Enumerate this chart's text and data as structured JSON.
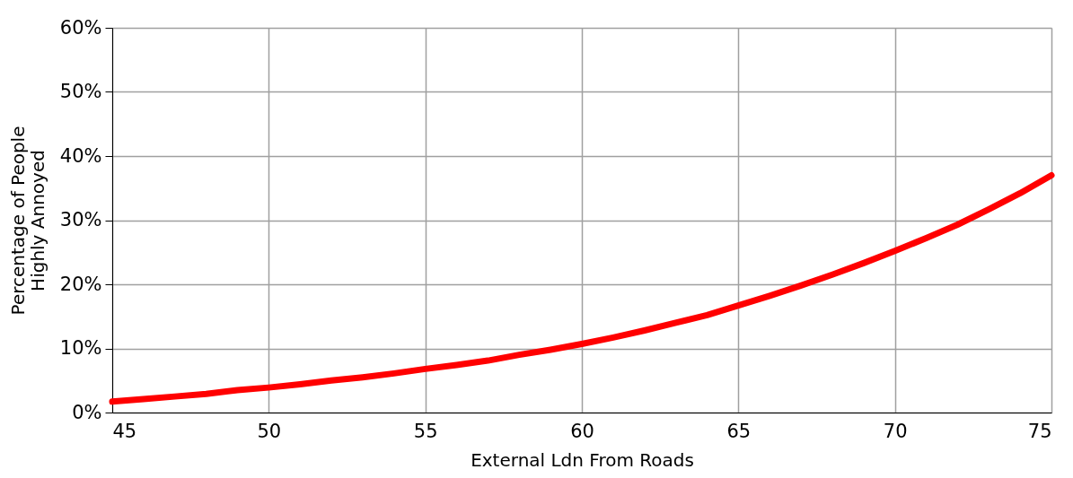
{
  "chart_data": {
    "type": "line",
    "xlabel": "External Ldn From Roads",
    "ylabel": "Percentage of People\nHighly Annoyed",
    "x": [
      45,
      46,
      47,
      48,
      49,
      50,
      51,
      52,
      53,
      54,
      55,
      56,
      57,
      58,
      59,
      60,
      61,
      62,
      63,
      64,
      65,
      66,
      67,
      68,
      69,
      70,
      71,
      72,
      73,
      74,
      75
    ],
    "series": [
      {
        "color": "#ff0000",
        "values": [
          1.7,
          2.1,
          2.5,
          2.9,
          3.5,
          3.9,
          4.4,
          5.0,
          5.5,
          6.1,
          6.8,
          7.4,
          8.1,
          9.0,
          9.8,
          10.7,
          11.7,
          12.8,
          14.0,
          15.2,
          16.7,
          18.2,
          19.8,
          21.5,
          23.3,
          25.2,
          27.2,
          29.3,
          31.7,
          34.2,
          37.0
        ]
      }
    ],
    "xlim": [
      45,
      75
    ],
    "xticks": [
      45,
      50,
      55,
      60,
      65,
      70,
      75
    ],
    "ylim": [
      0,
      60
    ],
    "yticks": [
      {
        "value": 0,
        "label": "0%"
      },
      {
        "value": 10,
        "label": "10%"
      },
      {
        "value": 20,
        "label": "20%"
      },
      {
        "value": 30,
        "label": "30%"
      },
      {
        "value": 40,
        "label": "40%"
      },
      {
        "value": 50,
        "label": "50%"
      },
      {
        "value": 60,
        "label": "60%"
      }
    ],
    "grid": true,
    "marker": "none",
    "line_style": "solid"
  }
}
